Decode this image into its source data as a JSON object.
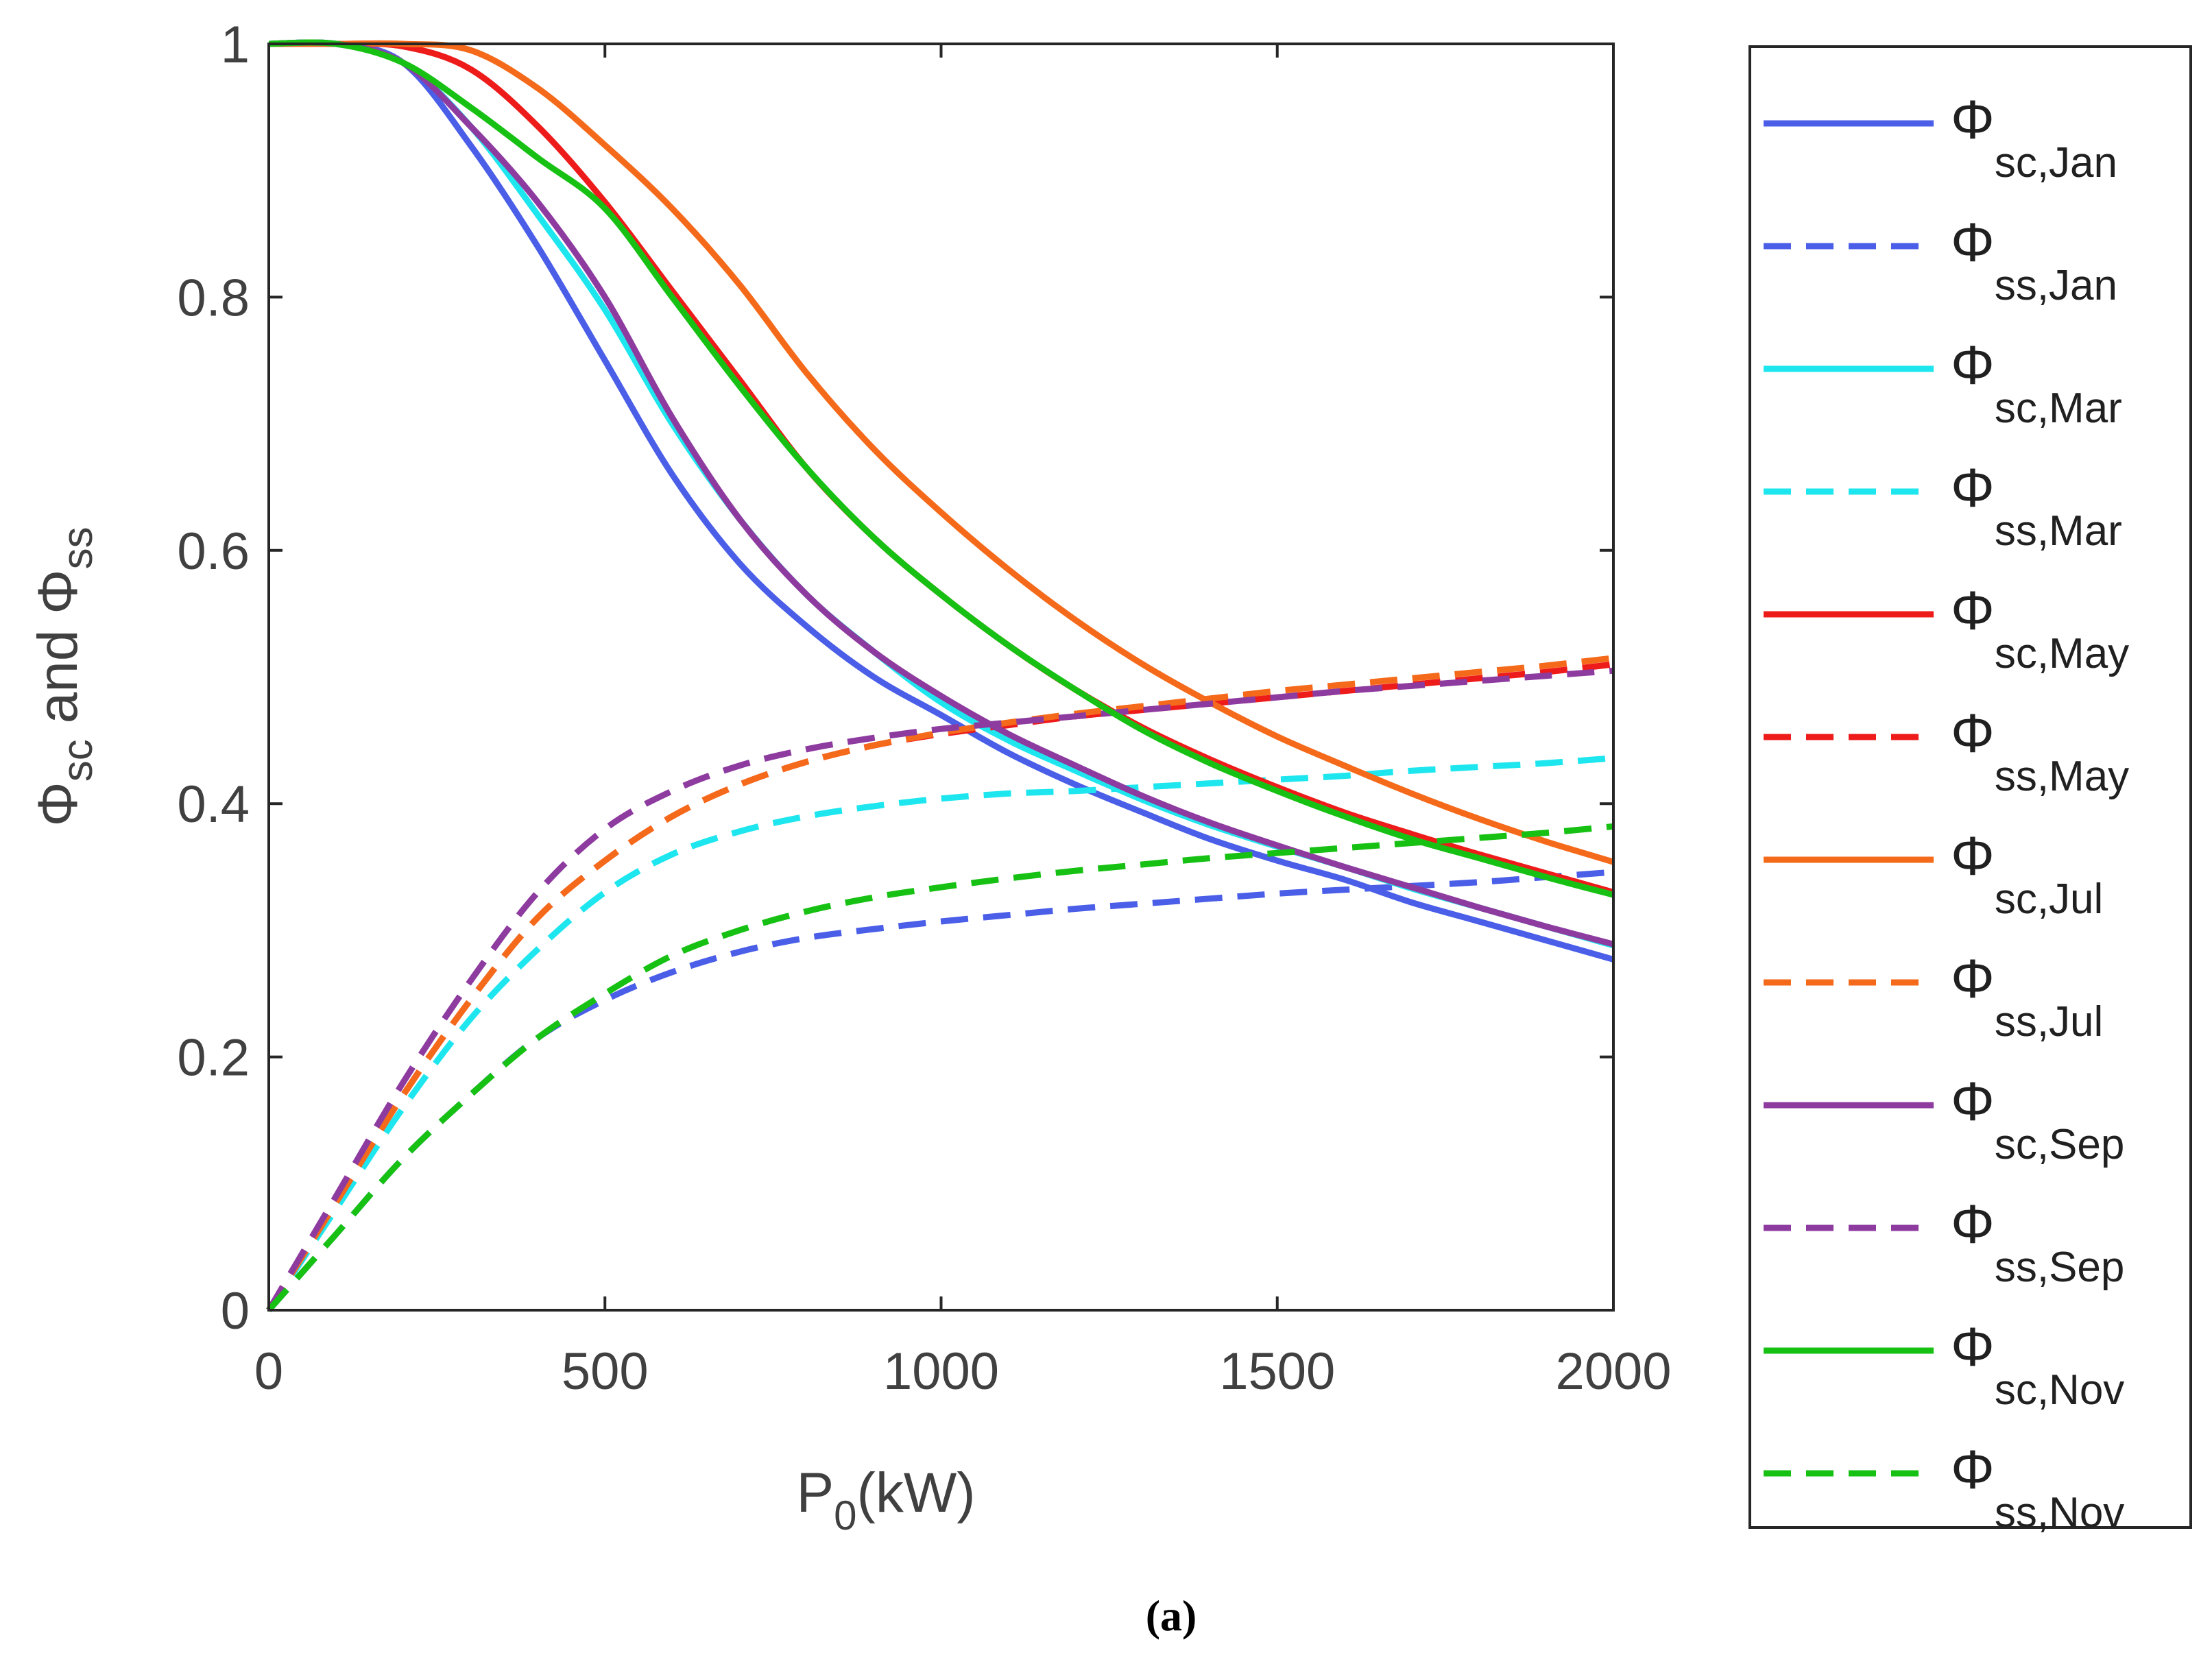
{
  "chart_data": {
    "type": "line",
    "title": "",
    "caption": "(a)",
    "xlabel": {
      "main": "P",
      "sub": "0",
      "rest": "(kW)"
    },
    "ylabel": {
      "phi1": "Φ",
      "sub1": "sc",
      "mid": " and ",
      "phi2": "Φ",
      "sub2": "ss"
    },
    "xlim": [
      0,
      2000
    ],
    "ylim": [
      0,
      1
    ],
    "xticks": [
      0,
      500,
      1000,
      1500,
      2000
    ],
    "xtick_labels": [
      "0",
      "500",
      "1000",
      "1500",
      "2000"
    ],
    "yticks": [
      0,
      0.2,
      0.4,
      0.6,
      0.8,
      1
    ],
    "ytick_labels": [
      "0",
      "0.2",
      "0.4",
      "0.6",
      "0.8",
      "1"
    ],
    "legend_position": "outside-right",
    "x": [
      0,
      100,
      200,
      300,
      400,
      500,
      600,
      700,
      800,
      900,
      1000,
      1100,
      1200,
      1300,
      1400,
      1500,
      1600,
      1700,
      1800,
      1900,
      2000
    ],
    "series": [
      {
        "name": "Φsc,Jan",
        "symbol": "Φ",
        "sub": "sc,Jan",
        "color": "#4a5ee8",
        "dash": false,
        "values": [
          1,
          1,
          0.985,
          0.92,
          0.84,
          0.75,
          0.66,
          0.59,
          0.54,
          0.5,
          0.47,
          0.44,
          0.415,
          0.393,
          0.372,
          0.355,
          0.34,
          0.322,
          0.307,
          0.292,
          0.277
        ]
      },
      {
        "name": "Φss,Jan",
        "symbol": "Φ",
        "sub": "ss,Jan",
        "color": "#4a5ee8",
        "dash": true,
        "values": [
          0,
          0.06,
          0.12,
          0.17,
          0.215,
          0.245,
          0.267,
          0.283,
          0.294,
          0.301,
          0.307,
          0.312,
          0.317,
          0.321,
          0.325,
          0.329,
          0.332,
          0.335,
          0.338,
          0.342,
          0.346
        ]
      },
      {
        "name": "Φsc,Mar",
        "symbol": "Φ",
        "sub": "sc,Mar",
        "color": "#1ee6ee",
        "dash": false,
        "values": [
          1,
          1,
          0.985,
          0.935,
          0.865,
          0.79,
          0.7,
          0.625,
          0.565,
          0.52,
          0.48,
          0.45,
          0.426,
          0.403,
          0.383,
          0.366,
          0.35,
          0.333,
          0.318,
          0.303,
          0.288
        ]
      },
      {
        "name": "Φss,Mar",
        "symbol": "Φ",
        "sub": "ss,Mar",
        "color": "#1ee6ee",
        "dash": true,
        "values": [
          0,
          0.08,
          0.16,
          0.23,
          0.285,
          0.33,
          0.36,
          0.378,
          0.39,
          0.398,
          0.404,
          0.408,
          0.41,
          0.413,
          0.416,
          0.419,
          0.422,
          0.426,
          0.429,
          0.432,
          0.436
        ]
      },
      {
        "name": "Φsc,May",
        "symbol": "Φ",
        "sub": "sc,May",
        "color": "#ee1b1b",
        "dash": false,
        "values": [
          1,
          1,
          0.998,
          0.98,
          0.935,
          0.875,
          0.805,
          0.735,
          0.665,
          0.61,
          0.565,
          0.525,
          0.49,
          0.46,
          0.435,
          0.413,
          0.393,
          0.376,
          0.36,
          0.345,
          0.33
        ]
      },
      {
        "name": "Φss,May",
        "symbol": "Φ",
        "sub": "ss,May",
        "color": "#ee1b1b",
        "dash": true,
        "values": [
          0,
          0.085,
          0.17,
          0.245,
          0.31,
          0.355,
          0.39,
          0.415,
          0.433,
          0.446,
          0.455,
          0.462,
          0.469,
          0.474,
          0.479,
          0.484,
          0.489,
          0.494,
          0.499,
          0.504,
          0.51
        ]
      },
      {
        "name": "Φsc,Jul",
        "symbol": "Φ",
        "sub": "sc,Jul",
        "color": "#f56a1a",
        "dash": false,
        "values": [
          1,
          1,
          1,
          0.995,
          0.965,
          0.92,
          0.87,
          0.81,
          0.74,
          0.68,
          0.63,
          0.585,
          0.545,
          0.51,
          0.48,
          0.453,
          0.43,
          0.408,
          0.388,
          0.37,
          0.354
        ]
      },
      {
        "name": "Φss,Jul",
        "symbol": "Φ",
        "sub": "ss,Jul",
        "color": "#f56a1a",
        "dash": true,
        "values": [
          0,
          0.085,
          0.17,
          0.245,
          0.31,
          0.355,
          0.39,
          0.415,
          0.433,
          0.446,
          0.456,
          0.464,
          0.471,
          0.477,
          0.483,
          0.489,
          0.494,
          0.499,
          0.504,
          0.509,
          0.515
        ]
      },
      {
        "name": "Φsc,Sep",
        "symbol": "Φ",
        "sub": "sc,Sep",
        "color": "#8e3ba0",
        "dash": false,
        "values": [
          1,
          1,
          0.985,
          0.935,
          0.875,
          0.8,
          0.705,
          0.625,
          0.565,
          0.52,
          0.485,
          0.455,
          0.43,
          0.406,
          0.385,
          0.367,
          0.35,
          0.334,
          0.318,
          0.303,
          0.289
        ]
      },
      {
        "name": "Φss,Sep",
        "symbol": "Φ",
        "sub": "ss,Sep",
        "color": "#8e3ba0",
        "dash": true,
        "values": [
          0,
          0.09,
          0.18,
          0.26,
          0.33,
          0.38,
          0.41,
          0.43,
          0.443,
          0.452,
          0.459,
          0.464,
          0.469,
          0.474,
          0.479,
          0.484,
          0.489,
          0.493,
          0.497,
          0.501,
          0.505
        ]
      },
      {
        "name": "Φsc,Nov",
        "symbol": "Φ",
        "sub": "sc,Nov",
        "color": "#17c114",
        "dash": false,
        "values": [
          1,
          1,
          0.985,
          0.95,
          0.91,
          0.87,
          0.8,
          0.73,
          0.665,
          0.61,
          0.565,
          0.525,
          0.49,
          0.458,
          0.432,
          0.41,
          0.39,
          0.372,
          0.357,
          0.342,
          0.328
        ]
      },
      {
        "name": "Φss,Nov",
        "symbol": "Φ",
        "sub": "ss,Nov",
        "color": "#17c114",
        "dash": true,
        "values": [
          0,
          0.06,
          0.12,
          0.17,
          0.215,
          0.25,
          0.28,
          0.3,
          0.315,
          0.326,
          0.334,
          0.341,
          0.347,
          0.352,
          0.357,
          0.361,
          0.365,
          0.369,
          0.373,
          0.377,
          0.382
        ]
      }
    ]
  }
}
